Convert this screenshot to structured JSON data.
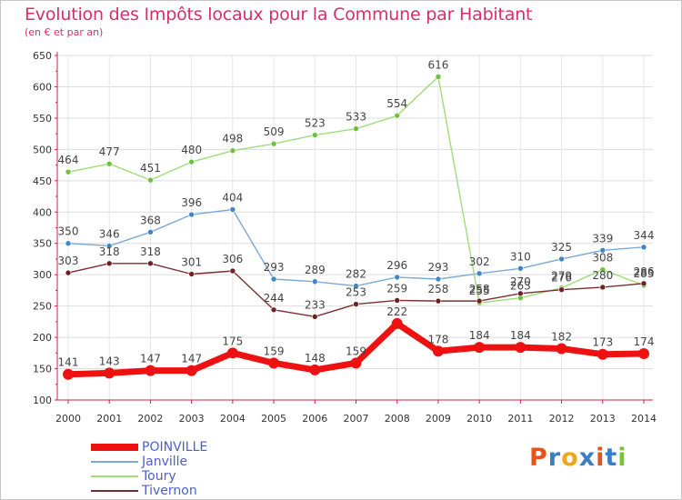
{
  "header": {
    "title": "Evolution des Impôts locaux pour la Commune par Habitant",
    "subtitle": "(en € et par an)"
  },
  "logo": {
    "text": "Proxiti",
    "colors": [
      "#e9531b",
      "#3a7fc4",
      "#f2a61d",
      "#3a7fc4",
      "#e9531b",
      "#3a7fc4",
      "#7cbf3c"
    ]
  },
  "chart_data": {
    "type": "line",
    "x": [
      2000,
      2001,
      2002,
      2003,
      2004,
      2005,
      2006,
      2007,
      2008,
      2009,
      2010,
      2011,
      2012,
      2013,
      2014
    ],
    "ylim": [
      100,
      650
    ],
    "yticks": [
      100,
      150,
      200,
      250,
      300,
      350,
      400,
      450,
      500,
      550,
      600,
      650
    ],
    "grid": true,
    "legend_placement": "bottom-left",
    "series": [
      {
        "name": "POINVILLE",
        "color": "#ee1111",
        "marker_color": "#ee1111",
        "width": 7,
        "values": [
          141,
          143,
          147,
          147,
          175,
          159,
          148,
          159,
          222,
          178,
          184,
          184,
          182,
          173,
          174
        ]
      },
      {
        "name": "Janville",
        "color": "#7aa9d6",
        "marker_color": "#3f86c8",
        "width": 1.4,
        "values": [
          350,
          346,
          368,
          396,
          404,
          293,
          289,
          282,
          296,
          293,
          302,
          310,
          325,
          339,
          344
        ]
      },
      {
        "name": "Toury",
        "color": "#9fdc7a",
        "marker_color": "#6cc23b",
        "width": 1.4,
        "values": [
          464,
          477,
          451,
          480,
          498,
          509,
          523,
          533,
          554,
          616,
          255,
          263,
          279,
          308,
          283
        ]
      },
      {
        "name": "Tivernon",
        "color": "#7a2f2f",
        "marker_color": "#6a2222",
        "width": 1.4,
        "values": [
          303,
          318,
          318,
          301,
          306,
          244,
          233,
          253,
          259,
          258,
          258,
          270,
          276,
          280,
          286
        ]
      }
    ]
  }
}
